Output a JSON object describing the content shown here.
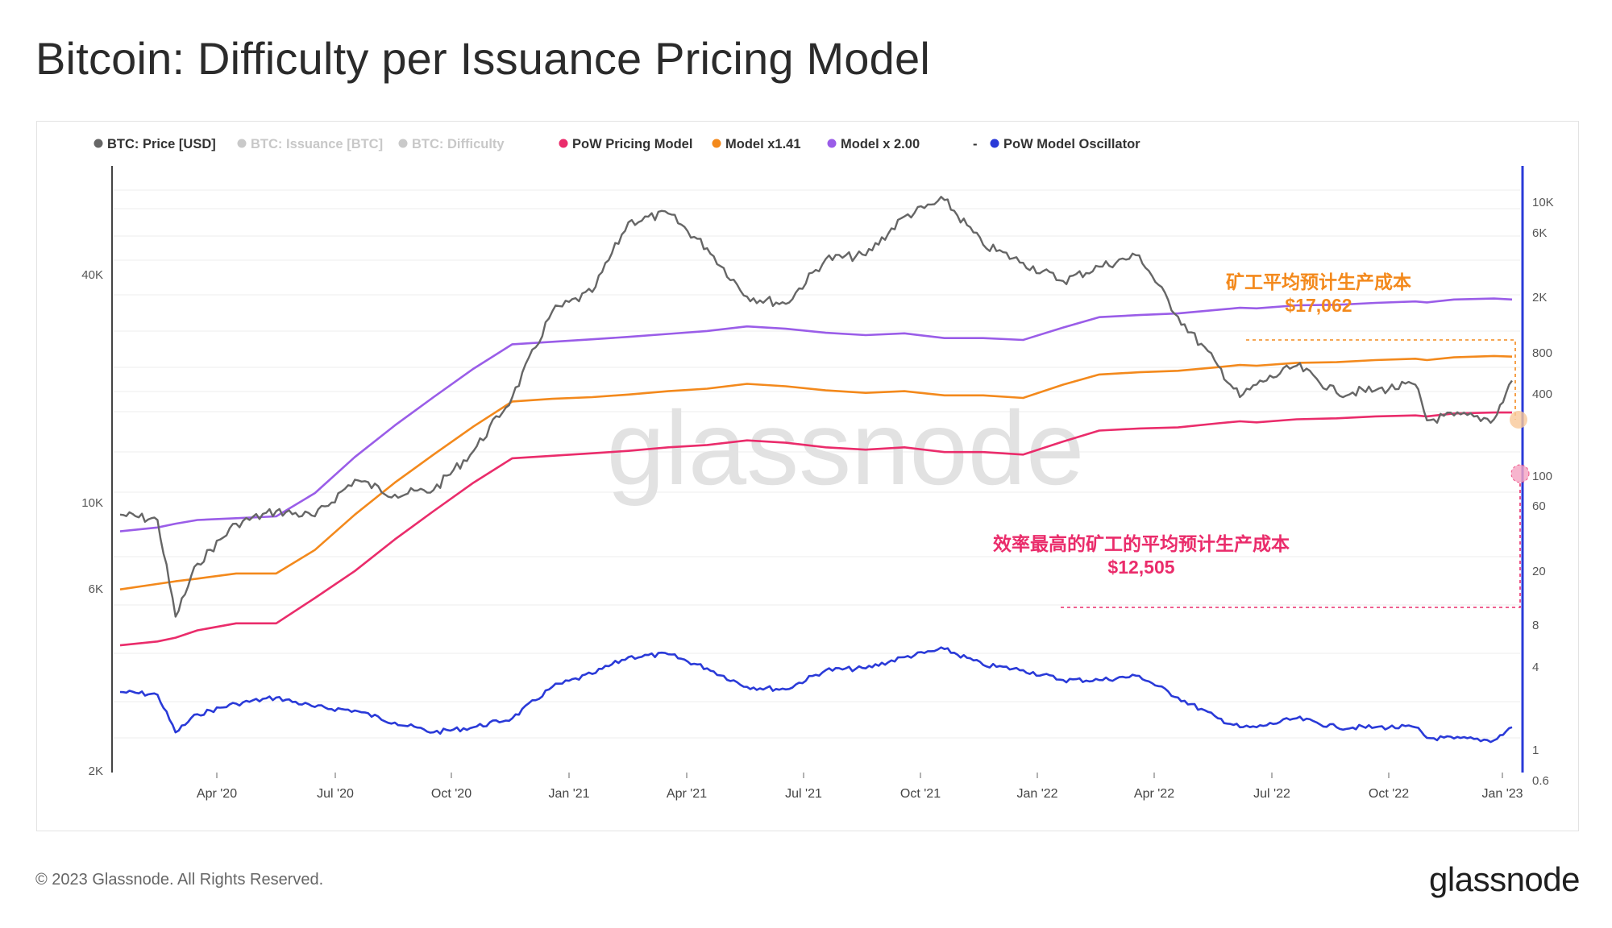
{
  "title": "Bitcoin: Difficulty per Issuance Pricing Model",
  "footer": {
    "copyright": "© 2023 Glassnode. All Rights Reserved.",
    "logo": "glassnode"
  },
  "watermark": "glassnode",
  "legend": [
    {
      "label": "BTC: Price [USD]",
      "color": "#666666",
      "active": true
    },
    {
      "label": "BTC: Issuance [BTC]",
      "color": "#1aa36f",
      "active": false
    },
    {
      "label": "BTC: Difficulty",
      "color": "#f06a1c",
      "active": false
    },
    {
      "label": "PoW Pricing Model",
      "color": "#ea2c6b",
      "active": true
    },
    {
      "label": "Model x1.41",
      "color": "#f3891c",
      "active": true
    },
    {
      "label": "Model x 2.00",
      "color": "#9a5de8",
      "active": true
    },
    {
      "label": "-",
      "color": "",
      "active": true
    },
    {
      "label": "PoW Model Oscillator",
      "color": "#2a3ad8",
      "active": true
    }
  ],
  "annotations": {
    "orange_label": "矿工平均预计生产成本",
    "orange_value": "$17,062",
    "pink_label": "效率最高的矿工的平均预计生产成本",
    "pink_value": "$12,505",
    "orange_color": "#f3891c",
    "pink_color": "#ea2c6b"
  },
  "chart_data": {
    "type": "line",
    "x_ticks": [
      "Apr '20",
      "Jul '20",
      "Oct '20",
      "Jan '21",
      "Apr '21",
      "Jul '21",
      "Oct '21",
      "Jan '22",
      "Apr '22",
      "Jul '22",
      "Oct '22",
      "Jan '23"
    ],
    "y_left": {
      "scale": "log",
      "ticks": [
        "40K",
        "10K",
        "6K",
        "2K"
      ],
      "tick_values": [
        40000,
        10000,
        6000,
        2000
      ]
    },
    "y_right": {
      "scale": "log",
      "ticks": [
        "10K",
        "6K",
        "2K",
        "800",
        "400",
        "100",
        "60",
        "20",
        "8",
        "4",
        "1",
        "0.6"
      ],
      "tick_values": [
        10000,
        6000,
        2000,
        800,
        400,
        100,
        60,
        20,
        8,
        4,
        1,
        0.6
      ]
    },
    "x": [
      "2020-02-01",
      "2020-03-01",
      "2020-03-15",
      "2020-04-01",
      "2020-05-01",
      "2020-06-01",
      "2020-07-01",
      "2020-08-01",
      "2020-09-01",
      "2020-10-01",
      "2020-11-01",
      "2020-12-01",
      "2021-01-01",
      "2021-02-01",
      "2021-03-01",
      "2021-04-01",
      "2021-05-01",
      "2021-06-01",
      "2021-07-01",
      "2021-08-01",
      "2021-09-01",
      "2021-10-01",
      "2021-11-01",
      "2021-12-01",
      "2022-01-01",
      "2022-02-01",
      "2022-03-01",
      "2022-04-01",
      "2022-05-01",
      "2022-06-01",
      "2022-06-18",
      "2022-07-01",
      "2022-08-01",
      "2022-09-01",
      "2022-10-01",
      "2022-11-01",
      "2022-11-10",
      "2022-12-01",
      "2023-01-01",
      "2023-01-15"
    ],
    "series": [
      {
        "name": "BTC: Price [USD]",
        "axis": "left",
        "values": [
          9300,
          9000,
          5000,
          6900,
          8800,
          9500,
          9200,
          11500,
          10500,
          10800,
          13700,
          19000,
          32000,
          36000,
          55000,
          58000,
          47000,
          35000,
          33500,
          44000,
          45000,
          57000,
          63000,
          48000,
          43000,
          38500,
          42000,
          45000,
          31000,
          23000,
          19000,
          20500,
          23000,
          19500,
          19800,
          20500,
          16500,
          17000,
          16600,
          21000
        ]
      },
      {
        "name": "PoW Pricing Model",
        "axis": "left",
        "values": [
          4200,
          4300,
          4400,
          4600,
          4800,
          4800,
          5600,
          6600,
          8000,
          9500,
          11300,
          13100,
          13300,
          13500,
          13700,
          14000,
          14200,
          14600,
          14400,
          14000,
          13800,
          14000,
          13600,
          13600,
          13400,
          14500,
          15500,
          15700,
          15800,
          16200,
          16400,
          16300,
          16600,
          16700,
          16900,
          17000,
          16900,
          17200,
          17300,
          17300
        ]
      },
      {
        "name": "Model x1.41",
        "axis": "left",
        "values": [
          5900,
          6100,
          6200,
          6300,
          6500,
          6500,
          7500,
          9300,
          11300,
          13400,
          15900,
          18500,
          18800,
          19000,
          19300,
          19700,
          20000,
          20600,
          20300,
          19800,
          19500,
          19700,
          19200,
          19200,
          18900,
          20500,
          21800,
          22100,
          22300,
          22800,
          23100,
          23000,
          23400,
          23500,
          23800,
          24000,
          23800,
          24200,
          24400,
          24300
        ]
      },
      {
        "name": "Model x 2.00",
        "axis": "left",
        "values": [
          8400,
          8600,
          8800,
          9000,
          9100,
          9200,
          10600,
          13200,
          16000,
          19000,
          22600,
          26200,
          26600,
          27000,
          27400,
          27900,
          28400,
          29200,
          28800,
          28100,
          27700,
          28000,
          27200,
          27200,
          26900,
          29000,
          30900,
          31300,
          31600,
          32300,
          32700,
          32600,
          33200,
          33300,
          33700,
          34000,
          33800,
          34400,
          34600,
          34400
        ]
      },
      {
        "name": "PoW Model Oscillator",
        "axis": "right",
        "values": [
          2.2,
          2.1,
          1.1,
          1.5,
          1.8,
          2.0,
          1.7,
          1.6,
          1.3,
          1.1,
          1.2,
          1.4,
          2.4,
          3.0,
          4.0,
          4.2,
          3.3,
          2.4,
          2.3,
          3.2,
          3.3,
          4.0,
          4.6,
          3.5,
          3.2,
          2.7,
          2.7,
          2.9,
          2.0,
          1.4,
          1.2,
          1.2,
          1.4,
          1.2,
          1.2,
          1.2,
          1.0,
          0.99,
          0.96,
          1.2
        ]
      }
    ]
  }
}
